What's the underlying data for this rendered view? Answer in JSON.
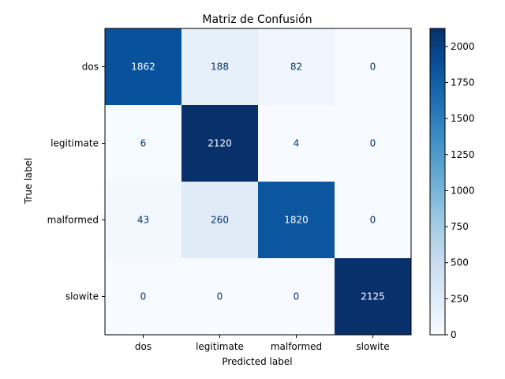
{
  "chart_data": {
    "type": "heatmap",
    "title": "Matriz de Confusión",
    "xlabel": "Predicted label",
    "ylabel": "True label",
    "x_categories": [
      "dos",
      "legitimate",
      "malformed",
      "slowite"
    ],
    "y_categories": [
      "dos",
      "legitimate",
      "malformed",
      "slowite"
    ],
    "values": [
      [
        1862,
        188,
        82,
        0
      ],
      [
        6,
        2120,
        4,
        0
      ],
      [
        43,
        260,
        1820,
        0
      ],
      [
        0,
        0,
        0,
        2125
      ]
    ],
    "colormap": "Blues",
    "color_range": [
      0,
      2125
    ],
    "colorbar_ticks": [
      0,
      250,
      500,
      750,
      1000,
      1250,
      1500,
      1750,
      2000
    ],
    "grid": false
  }
}
